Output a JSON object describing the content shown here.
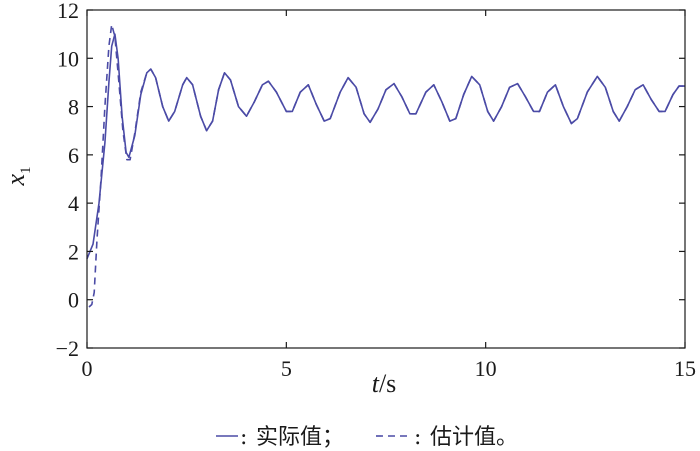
{
  "chart_data": {
    "type": "line",
    "xlabel": {
      "var": "t",
      "sep": "/",
      "unit": "s"
    },
    "ylabel": {
      "var": "x",
      "sub": "1"
    },
    "xlim": [
      0,
      15
    ],
    "ylim": [
      -2,
      12
    ],
    "xticks": [
      "0",
      "5",
      "10",
      "15"
    ],
    "yticks": [
      "−2",
      "0",
      "2",
      "4",
      "6",
      "8",
      "10",
      "12"
    ],
    "grid": false,
    "legend_position": "bottom",
    "line_color": "#4b4ba6",
    "series": [
      {
        "name": "实际值；",
        "style": "solid",
        "points": [
          [
            0.0,
            1.7
          ],
          [
            0.15,
            2.3
          ],
          [
            0.3,
            4.0
          ],
          [
            0.45,
            6.5
          ],
          [
            0.55,
            9.0
          ],
          [
            0.62,
            10.5
          ],
          [
            0.7,
            11.0
          ],
          [
            0.78,
            10.0
          ],
          [
            0.88,
            7.6
          ],
          [
            0.98,
            6.1
          ],
          [
            1.05,
            5.9
          ],
          [
            1.2,
            6.8
          ],
          [
            1.35,
            8.5
          ],
          [
            1.5,
            9.4
          ],
          [
            1.6,
            9.55
          ],
          [
            1.72,
            9.2
          ],
          [
            1.9,
            8.0
          ],
          [
            2.05,
            7.4
          ],
          [
            2.2,
            7.8
          ],
          [
            2.4,
            8.9
          ],
          [
            2.5,
            9.2
          ],
          [
            2.65,
            8.9
          ],
          [
            2.85,
            7.6
          ],
          [
            3.0,
            7.0
          ],
          [
            3.15,
            7.4
          ],
          [
            3.3,
            8.7
          ],
          [
            3.45,
            9.4
          ],
          [
            3.6,
            9.1
          ],
          [
            3.8,
            8.0
          ],
          [
            4.0,
            7.6
          ],
          [
            4.2,
            8.2
          ],
          [
            4.4,
            8.9
          ],
          [
            4.55,
            9.05
          ],
          [
            4.75,
            8.6
          ],
          [
            5.0,
            7.8
          ],
          [
            5.15,
            7.8
          ],
          [
            5.35,
            8.6
          ],
          [
            5.55,
            8.9
          ],
          [
            5.75,
            8.1
          ],
          [
            5.95,
            7.4
          ],
          [
            6.1,
            7.5
          ],
          [
            6.35,
            8.6
          ],
          [
            6.55,
            9.2
          ],
          [
            6.75,
            8.8
          ],
          [
            6.95,
            7.7
          ],
          [
            7.1,
            7.35
          ],
          [
            7.3,
            7.9
          ],
          [
            7.5,
            8.7
          ],
          [
            7.7,
            8.95
          ],
          [
            7.9,
            8.4
          ],
          [
            8.1,
            7.7
          ],
          [
            8.25,
            7.7
          ],
          [
            8.5,
            8.6
          ],
          [
            8.7,
            8.9
          ],
          [
            8.9,
            8.2
          ],
          [
            9.1,
            7.4
          ],
          [
            9.25,
            7.5
          ],
          [
            9.45,
            8.5
          ],
          [
            9.65,
            9.25
          ],
          [
            9.85,
            8.9
          ],
          [
            10.05,
            7.8
          ],
          [
            10.2,
            7.4
          ],
          [
            10.4,
            8.0
          ],
          [
            10.6,
            8.8
          ],
          [
            10.8,
            8.95
          ],
          [
            11.0,
            8.4
          ],
          [
            11.2,
            7.8
          ],
          [
            11.35,
            7.8
          ],
          [
            11.55,
            8.6
          ],
          [
            11.75,
            8.9
          ],
          [
            11.95,
            8.0
          ],
          [
            12.15,
            7.3
          ],
          [
            12.3,
            7.5
          ],
          [
            12.55,
            8.6
          ],
          [
            12.8,
            9.25
          ],
          [
            13.0,
            8.8
          ],
          [
            13.2,
            7.8
          ],
          [
            13.35,
            7.4
          ],
          [
            13.55,
            8.0
          ],
          [
            13.75,
            8.7
          ],
          [
            13.95,
            8.9
          ],
          [
            14.15,
            8.3
          ],
          [
            14.35,
            7.8
          ],
          [
            14.5,
            7.8
          ],
          [
            14.7,
            8.5
          ],
          [
            14.85,
            8.85
          ],
          [
            15.0,
            8.85
          ]
        ]
      },
      {
        "name": "估计值。",
        "style": "dashed",
        "points": [
          [
            0.05,
            -0.3
          ],
          [
            0.12,
            -0.2
          ],
          [
            0.18,
            0.3
          ],
          [
            0.25,
            2.5
          ],
          [
            0.35,
            5.0
          ],
          [
            0.45,
            8.0
          ],
          [
            0.55,
            10.5
          ],
          [
            0.62,
            11.4
          ],
          [
            0.7,
            10.9
          ],
          [
            0.8,
            9.0
          ],
          [
            0.9,
            7.0
          ],
          [
            1.0,
            5.8
          ],
          [
            1.08,
            5.8
          ],
          [
            1.2,
            6.9
          ],
          [
            1.35,
            8.6
          ],
          [
            1.5,
            9.4
          ],
          [
            1.6,
            9.55
          ],
          [
            1.72,
            9.2
          ],
          [
            1.9,
            8.0
          ],
          [
            2.05,
            7.4
          ],
          [
            2.2,
            7.8
          ],
          [
            2.4,
            8.9
          ],
          [
            2.5,
            9.2
          ],
          [
            2.65,
            8.9
          ],
          [
            2.85,
            7.6
          ],
          [
            3.0,
            7.0
          ],
          [
            3.15,
            7.4
          ],
          [
            3.3,
            8.7
          ],
          [
            3.45,
            9.4
          ],
          [
            3.6,
            9.1
          ],
          [
            3.8,
            8.0
          ],
          [
            4.0,
            7.6
          ],
          [
            4.2,
            8.2
          ],
          [
            4.4,
            8.9
          ],
          [
            4.55,
            9.05
          ],
          [
            4.75,
            8.6
          ],
          [
            5.0,
            7.8
          ],
          [
            5.15,
            7.8
          ],
          [
            5.35,
            8.6
          ],
          [
            5.55,
            8.9
          ],
          [
            5.75,
            8.1
          ],
          [
            5.95,
            7.4
          ],
          [
            6.1,
            7.5
          ],
          [
            6.35,
            8.6
          ],
          [
            6.55,
            9.2
          ],
          [
            6.75,
            8.8
          ],
          [
            6.95,
            7.7
          ],
          [
            7.1,
            7.35
          ],
          [
            7.3,
            7.9
          ],
          [
            7.5,
            8.7
          ],
          [
            7.7,
            8.95
          ],
          [
            7.9,
            8.4
          ],
          [
            8.1,
            7.7
          ],
          [
            8.25,
            7.7
          ],
          [
            8.5,
            8.6
          ],
          [
            8.7,
            8.9
          ],
          [
            8.9,
            8.2
          ],
          [
            9.1,
            7.4
          ],
          [
            9.25,
            7.5
          ],
          [
            9.45,
            8.5
          ],
          [
            9.65,
            9.25
          ],
          [
            9.85,
            8.9
          ],
          [
            10.05,
            7.8
          ],
          [
            10.2,
            7.4
          ],
          [
            10.4,
            8.0
          ],
          [
            10.6,
            8.8
          ],
          [
            10.8,
            8.95
          ],
          [
            11.0,
            8.4
          ],
          [
            11.2,
            7.8
          ],
          [
            11.35,
            7.8
          ],
          [
            11.55,
            8.6
          ],
          [
            11.75,
            8.9
          ],
          [
            11.95,
            8.0
          ],
          [
            12.15,
            7.3
          ],
          [
            12.3,
            7.5
          ],
          [
            12.55,
            8.6
          ],
          [
            12.8,
            9.25
          ],
          [
            13.0,
            8.8
          ],
          [
            13.2,
            7.8
          ],
          [
            13.35,
            7.4
          ],
          [
            13.55,
            8.0
          ],
          [
            13.75,
            8.7
          ],
          [
            13.95,
            8.9
          ],
          [
            14.15,
            8.3
          ],
          [
            14.35,
            7.8
          ],
          [
            14.5,
            7.8
          ],
          [
            14.7,
            8.5
          ],
          [
            14.85,
            8.85
          ],
          [
            15.0,
            8.85
          ]
        ]
      }
    ]
  }
}
